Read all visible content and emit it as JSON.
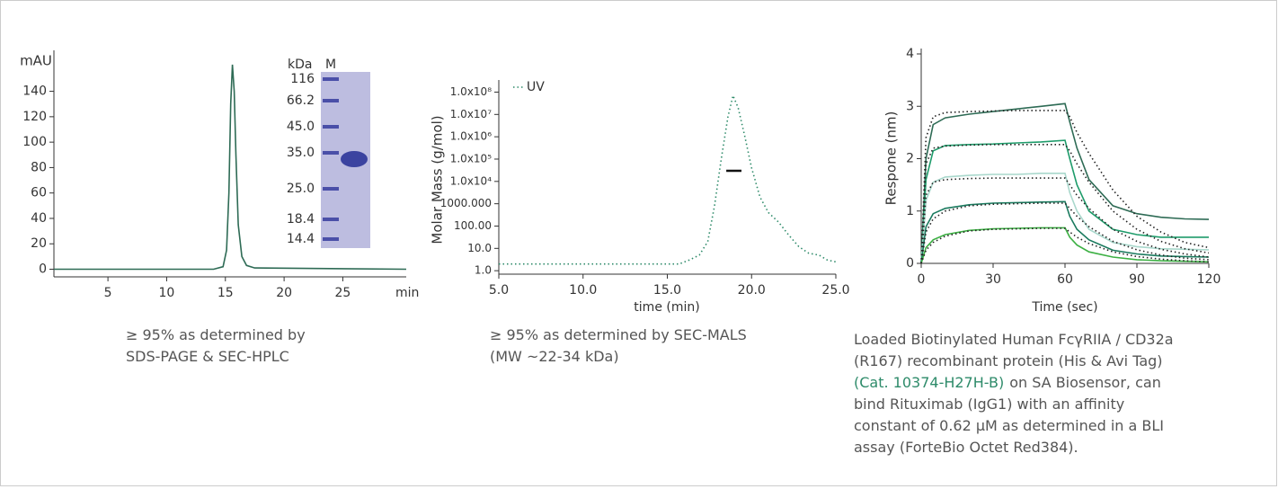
{
  "chart_data": [
    {
      "type": "line",
      "ylabel": "mAU",
      "xlabel": "min",
      "xlim": [
        0.4,
        30.4
      ],
      "ylim": [
        -6,
        168
      ],
      "xticks": [
        5,
        10,
        15,
        20,
        25
      ],
      "yticks": [
        0,
        20,
        40,
        60,
        80,
        100,
        120,
        140
      ],
      "series": [
        {
          "color": "#2e6b55",
          "x": [
            0.4,
            14,
            14.8,
            15.1,
            15.3,
            15.45,
            15.6,
            15.75,
            15.9,
            16.1,
            16.4,
            16.8,
            17.5,
            30.4
          ],
          "values": [
            0,
            0,
            2,
            15,
            60,
            130,
            161,
            140,
            90,
            35,
            10,
            3,
            1,
            0
          ]
        }
      ],
      "gel": {
        "unit": "kDa",
        "lane": "M",
        "markers": [
          "116",
          "66.2",
          "45.0",
          "35.0",
          "25.0",
          "18.4",
          "14.4"
        ]
      },
      "caption": [
        [
          "≥ 95% as determined by"
        ],
        [
          "SDS-PAGE & SEC-HPLC"
        ]
      ]
    },
    {
      "type": "line",
      "ylabel": "Molar Mass (g/mol)",
      "xlabel": "time (min)",
      "log_y": true,
      "legend": "upper left",
      "xlim": [
        5,
        25
      ],
      "ylim": [
        0.7,
        200000000
      ],
      "xticks": [
        {
          "value": 5,
          "label": "5.0"
        },
        {
          "value": 10,
          "label": "10.0"
        },
        {
          "value": 15,
          "label": "15.0"
        },
        {
          "value": 20,
          "label": "20.0"
        },
        {
          "value": 25,
          "label": "25.0"
        }
      ],
      "yticks": [
        {
          "value": 1,
          "label": "1.0"
        },
        {
          "value": 10,
          "label": "10.0"
        },
        {
          "value": 100,
          "label": "100.00"
        },
        {
          "value": 1000,
          "label": "1000.000"
        },
        {
          "value": 10000,
          "label": "1.0x10⁴"
        },
        {
          "value": 100000,
          "label": "1.0x10⁵"
        },
        {
          "value": 1000000,
          "label": "1.0x10⁶"
        },
        {
          "value": 10000000,
          "label": "1.0x10⁷"
        },
        {
          "value": 100000000,
          "label": "1.0x10⁸"
        }
      ],
      "series": [
        {
          "name": "UV",
          "color": "#2e8b6a",
          "style": "dotted",
          "x": [
            5,
            15.7,
            16.3,
            16.9,
            17.4,
            17.8,
            18.2,
            18.6,
            18.9,
            19.2,
            19.6,
            20,
            20.5,
            21,
            21.6,
            22.2,
            22.8,
            23.4,
            24,
            24.5,
            25
          ],
          "values": [
            2,
            2,
            3,
            5,
            20,
            800,
            100000,
            8000000,
            70000000,
            20000000,
            1000000,
            40000,
            2000,
            400,
            150,
            40,
            12,
            6,
            5,
            3,
            2.5
          ]
        },
        {
          "color": "#111111",
          "x": [
            18.5,
            19.4
          ],
          "values": [
            30000,
            30000
          ]
        }
      ],
      "caption": [
        [
          "≥ 95% as determined by SEC-MALS"
        ],
        [
          "(MW ~22-34 kDa)"
        ]
      ]
    },
    {
      "type": "line",
      "ylabel": "Respone (nm)",
      "xlabel": "Time (sec)",
      "xlim": [
        0,
        120
      ],
      "ylim": [
        0,
        4
      ],
      "xticks": [
        0,
        30,
        60,
        90,
        120
      ],
      "yticks": [
        0,
        1,
        2,
        3,
        4
      ],
      "x": [
        0,
        2,
        5,
        10,
        20,
        30,
        40,
        50,
        60,
        62,
        65,
        70,
        80,
        90,
        100,
        110,
        120
      ],
      "series": [
        {
          "color": "#2e6b55",
          "values": [
            0,
            2.0,
            2.65,
            2.78,
            2.85,
            2.9,
            2.95,
            3.0,
            3.05,
            2.7,
            2.2,
            1.6,
            1.1,
            0.95,
            0.88,
            0.85,
            0.84
          ]
        },
        {
          "color": "#1f9c6b",
          "values": [
            0,
            1.6,
            2.15,
            2.25,
            2.27,
            2.28,
            2.3,
            2.32,
            2.35,
            2.0,
            1.5,
            1.0,
            0.65,
            0.55,
            0.5,
            0.5,
            0.5
          ]
        },
        {
          "color": "#a9d8cc",
          "values": [
            0,
            1.2,
            1.55,
            1.65,
            1.68,
            1.7,
            1.7,
            1.72,
            1.72,
            1.35,
            1.0,
            0.65,
            0.4,
            0.32,
            0.28,
            0.27,
            0.26
          ]
        },
        {
          "color": "#1a7a5e",
          "values": [
            0,
            0.7,
            0.95,
            1.05,
            1.12,
            1.15,
            1.16,
            1.17,
            1.18,
            0.9,
            0.65,
            0.45,
            0.25,
            0.18,
            0.14,
            0.13,
            0.12
          ]
        },
        {
          "color": "#3cb043",
          "values": [
            0,
            0.3,
            0.45,
            0.55,
            0.63,
            0.66,
            0.67,
            0.68,
            0.68,
            0.5,
            0.35,
            0.22,
            0.12,
            0.07,
            0.05,
            0.04,
            0.03
          ]
        },
        {
          "color": "#222222",
          "style": "dotted",
          "values": [
            0,
            2.4,
            2.8,
            2.88,
            2.9,
            2.91,
            2.92,
            2.92,
            2.92,
            2.8,
            2.5,
            2.1,
            1.4,
            0.9,
            0.6,
            0.4,
            0.3
          ]
        },
        {
          "color": "#222222",
          "style": "dotted",
          "values": [
            0,
            1.9,
            2.2,
            2.24,
            2.26,
            2.27,
            2.27,
            2.27,
            2.27,
            2.15,
            1.9,
            1.55,
            1.0,
            0.65,
            0.42,
            0.28,
            0.2
          ]
        },
        {
          "color": "#222222",
          "style": "dotted",
          "values": [
            0,
            1.3,
            1.55,
            1.6,
            1.62,
            1.63,
            1.63,
            1.63,
            1.63,
            1.5,
            1.3,
            1.05,
            0.65,
            0.42,
            0.27,
            0.18,
            0.12
          ]
        },
        {
          "color": "#222222",
          "style": "dotted",
          "values": [
            0,
            0.6,
            0.85,
            1.0,
            1.1,
            1.13,
            1.14,
            1.15,
            1.15,
            1.05,
            0.9,
            0.7,
            0.42,
            0.26,
            0.16,
            0.1,
            0.07
          ]
        },
        {
          "color": "#222222",
          "style": "dotted",
          "values": [
            0,
            0.25,
            0.4,
            0.52,
            0.62,
            0.65,
            0.66,
            0.67,
            0.67,
            0.6,
            0.5,
            0.38,
            0.22,
            0.13,
            0.08,
            0.05,
            0.03
          ]
        }
      ],
      "caption": [
        [
          "Loaded Biotinylated Human FcγRIIA / CD32a"
        ],
        [
          "(R167)  recombinant protein (His & Avi Tag)"
        ],
        [
          {
            "text": "(Cat. 10374-H27H-B)",
            "color": "#2e8b6a"
          },
          "on SA Biosensor, can"
        ],
        [
          "bind Rituximab (IgG1) with an affinity"
        ],
        [
          "constant of 0.62 μM as determined in a BLI"
        ],
        [
          "assay (ForteBio Octet Red384)."
        ]
      ]
    }
  ]
}
